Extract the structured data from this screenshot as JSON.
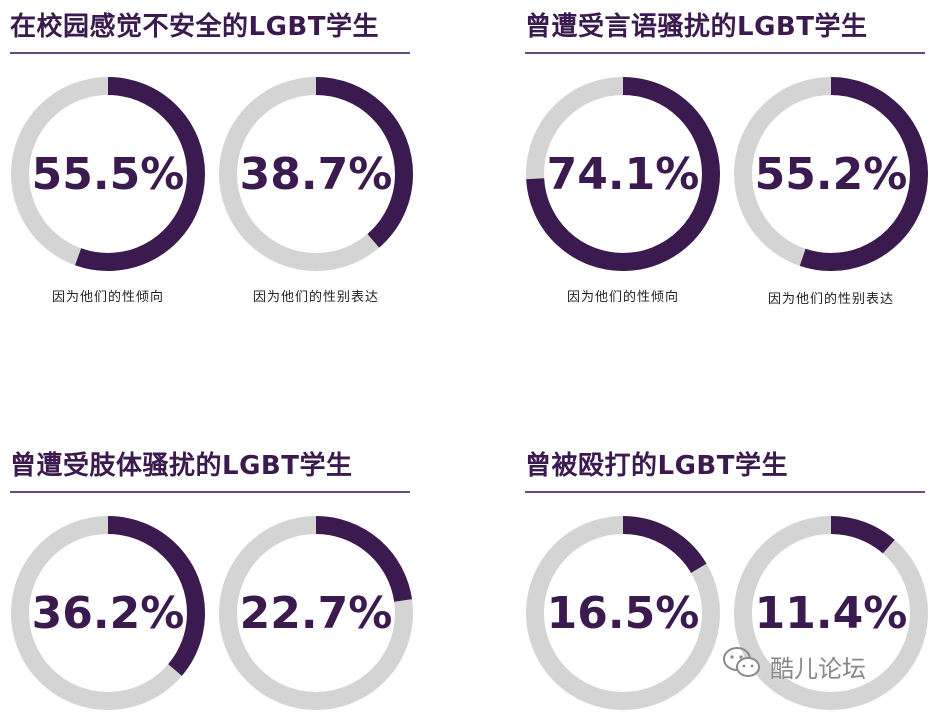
{
  "colors": {
    "accent": "#3b1a4f",
    "track": "#d4d4d4",
    "rule": "#6b4a80"
  },
  "watermark": {
    "text": "酷儿论坛",
    "icon": "wechat-icon"
  },
  "chart_data": [
    {
      "type": "donut",
      "title": "在校园感觉不安全的LGBT学生",
      "items": [
        {
          "label": "55.5%",
          "value": 55.5,
          "caption": "因为他们的性倾向"
        },
        {
          "label": "38.7%",
          "value": 38.7,
          "caption": "因为他们的性别表达"
        }
      ]
    },
    {
      "type": "donut",
      "title": "曾遭受言语骚扰的LGBT学生",
      "items": [
        {
          "label": "74.1%",
          "value": 74.1,
          "caption": "因为他们的性倾向"
        },
        {
          "label": "55.2%",
          "value": 55.2,
          "caption": "因为他们的性别表达"
        }
      ]
    },
    {
      "type": "donut",
      "title": "曾遭受肢体骚扰的LGBT学生",
      "items": [
        {
          "label": "36.2%",
          "value": 36.2,
          "caption": ""
        },
        {
          "label": "22.7%",
          "value": 22.7,
          "caption": ""
        }
      ]
    },
    {
      "type": "donut",
      "title": "曾被殴打的LGBT学生",
      "items": [
        {
          "label": "16.5%",
          "value": 16.5,
          "caption": ""
        },
        {
          "label": "11.4%",
          "value": 11.4,
          "caption": ""
        }
      ]
    }
  ]
}
